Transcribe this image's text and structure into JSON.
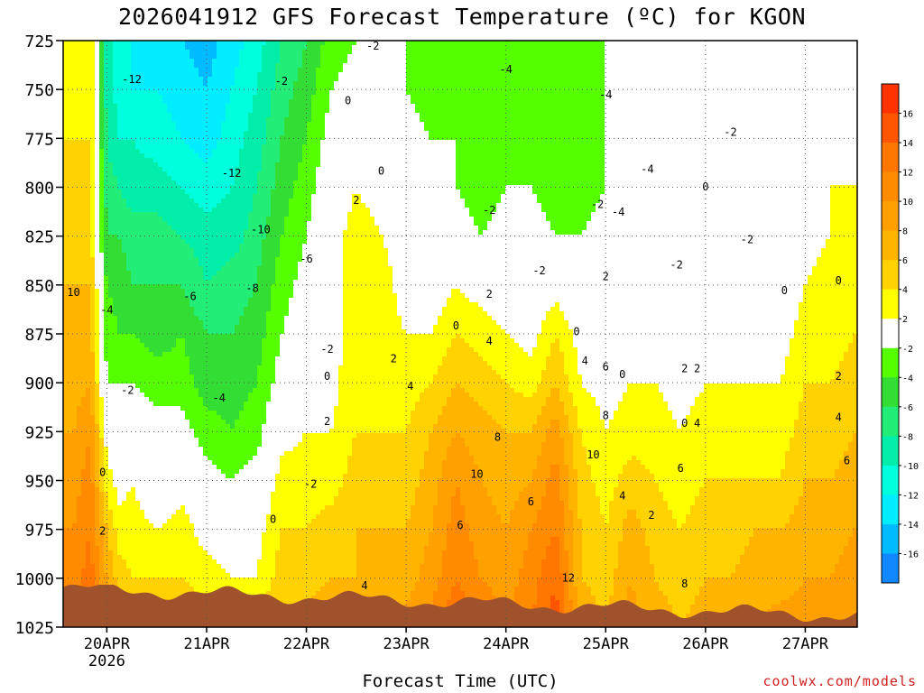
{
  "title": "2026041912 GFS Forecast Temperature (ºC) for KGON",
  "xlabel": "Forecast Time (UTC)",
  "credit": "coolwx.com/models",
  "chart_data": {
    "type": "heatmap",
    "title": "2026041912 GFS Forecast Temperature (ºC) for KGON",
    "xlabel": "Forecast Time (UTC)",
    "ylabel": "",
    "pressure_levels": [
      725,
      750,
      775,
      800,
      825,
      850,
      875,
      900,
      925,
      950,
      975,
      1000,
      1025
    ],
    "ylim": [
      1025,
      725
    ],
    "x_ticks": [
      "20APR",
      "21APR",
      "22APR",
      "23APR",
      "24APR",
      "25APR",
      "26APR",
      "27APR"
    ],
    "x_year": "2026",
    "x_range_hours": [
      -10.5,
      180.5
    ],
    "colorbar": {
      "labels": [
        "16",
        "14",
        "12",
        "10",
        "8",
        "6",
        "4",
        "2",
        "-2",
        "-4",
        "-6",
        "-8",
        "-10",
        "-12",
        "-14",
        "-16"
      ],
      "colors": [
        "#ff3300",
        "#ff5500",
        "#ff7700",
        "#ff8c00",
        "#ffa000",
        "#ffb400",
        "#ffd200",
        "#ffff00",
        "#ffffff",
        "#55ff00",
        "#33dd33",
        "#22ee77",
        "#00eeaa",
        "#00ffdd",
        "#00eeff",
        "#00bbff",
        "#1188ff"
      ]
    },
    "fields": [
      {
        "x": -8,
        "values": [
          4,
          3,
          4,
          4,
          5,
          6,
          6,
          7,
          8,
          9,
          10,
          11,
          12
        ]
      },
      {
        "x": -4,
        "values": [
          4,
          4,
          4,
          5,
          5,
          6,
          7,
          8,
          10,
          11,
          12,
          13,
          14
        ]
      },
      {
        "x": 0,
        "values": [
          -9,
          -9,
          -8,
          -7,
          -6,
          -4,
          -3,
          -2,
          1,
          3,
          6,
          8,
          10
        ]
      },
      {
        "x": 3,
        "values": [
          -11,
          -11,
          -10,
          -8,
          -6,
          -5,
          -4,
          -2,
          -1,
          1,
          3,
          5,
          8
        ]
      },
      {
        "x": 6,
        "values": [
          -12,
          -12,
          -10,
          -9,
          -7,
          -6,
          -4,
          -2,
          0,
          2,
          3,
          4,
          7
        ]
      },
      {
        "x": 12,
        "values": [
          -13,
          -12,
          -11,
          -9,
          -7,
          -6,
          -5,
          -3,
          -1,
          0,
          2,
          4,
          6
        ]
      },
      {
        "x": 18,
        "values": [
          -14,
          -13,
          -12,
          -10,
          -8,
          -6,
          -4,
          -3,
          -1,
          1,
          3,
          4,
          7
        ]
      },
      {
        "x": 24,
        "values": [
          -15,
          -14,
          -13,
          -11,
          -9,
          -8,
          -6,
          -5,
          -3,
          -1,
          1,
          3,
          5
        ]
      },
      {
        "x": 30,
        "values": [
          -13,
          -12,
          -11,
          -10,
          -9,
          -7,
          -6,
          -5,
          -4,
          -2,
          0,
          2,
          4
        ]
      },
      {
        "x": 36,
        "values": [
          -11,
          -10,
          -9,
          -8,
          -7,
          -6,
          -5,
          -4,
          -3,
          -1,
          1,
          2,
          4
        ]
      },
      {
        "x": 42,
        "values": [
          -8,
          -7,
          -6,
          -5,
          -4,
          -3,
          -2,
          -1,
          1,
          3,
          4,
          5,
          7
        ]
      },
      {
        "x": 48,
        "values": [
          -6,
          -5,
          -4,
          -3,
          -2,
          -1,
          0,
          1,
          2,
          3,
          4,
          5,
          7
        ]
      },
      {
        "x": 54,
        "values": [
          -3,
          -2,
          -1,
          0,
          1,
          1,
          1,
          1,
          2,
          3,
          5,
          6,
          8
        ]
      },
      {
        "x": 60,
        "values": [
          -2,
          -1,
          1,
          2,
          3,
          3,
          3,
          4,
          4,
          5,
          6,
          6,
          8
        ]
      },
      {
        "x": 66,
        "values": [
          -2,
          -1,
          0,
          1,
          2,
          3,
          3,
          3,
          4,
          5,
          6,
          6,
          8
        ]
      },
      {
        "x": 72,
        "values": [
          -2,
          -2,
          -1,
          0,
          1,
          1,
          2,
          3,
          4,
          5,
          6,
          7,
          9
        ]
      },
      {
        "x": 78,
        "values": [
          -3,
          -3,
          -2,
          -2,
          -1,
          0,
          2,
          4,
          6,
          7,
          8,
          9,
          11
        ]
      },
      {
        "x": 84,
        "values": [
          -3,
          -3,
          -2,
          -2,
          -1,
          2,
          4,
          6,
          8,
          10,
          11,
          12,
          14
        ]
      },
      {
        "x": 90,
        "values": [
          -4,
          -4,
          -3,
          -3,
          -2,
          1,
          3,
          5,
          7,
          8,
          9,
          10,
          12
        ]
      },
      {
        "x": 96,
        "values": [
          -4,
          -3,
          -3,
          -2,
          -1,
          0,
          2,
          4,
          6,
          7,
          8,
          9,
          10
        ]
      },
      {
        "x": 102,
        "values": [
          -4,
          -4,
          -3,
          -2,
          -1,
          0,
          1,
          3,
          6,
          8,
          10,
          11,
          12
        ]
      },
      {
        "x": 108,
        "values": [
          -4,
          -4,
          -3,
          -3,
          -2,
          1,
          4,
          6,
          9,
          11,
          12,
          14,
          15
        ]
      },
      {
        "x": 114,
        "values": [
          -4,
          -4,
          -3,
          -3,
          -2,
          -1,
          1,
          2,
          4,
          5,
          6,
          6,
          8
        ]
      },
      {
        "x": 120,
        "values": [
          -2,
          -2,
          -2,
          -2,
          -1,
          -1,
          0,
          1,
          2,
          3,
          4,
          5,
          6
        ]
      },
      {
        "x": 126,
        "values": [
          -2,
          -1,
          -1,
          -1,
          -1,
          0,
          1,
          2,
          3,
          5,
          7,
          8,
          9
        ]
      },
      {
        "x": 132,
        "values": [
          -1,
          -1,
          0,
          0,
          0,
          0,
          1,
          2,
          3,
          4,
          5,
          6,
          7
        ]
      },
      {
        "x": 138,
        "values": [
          -1,
          -1,
          -1,
          -2,
          -2,
          -1,
          0,
          1,
          2,
          3,
          4,
          5,
          6
        ]
      },
      {
        "x": 144,
        "values": [
          -2,
          -2,
          -2,
          -2,
          -2,
          0,
          1,
          2,
          3,
          4,
          5,
          6,
          7
        ]
      },
      {
        "x": 150,
        "values": [
          -2,
          -2,
          -2,
          -2,
          -1,
          0,
          1,
          2,
          3,
          4,
          5,
          6,
          7
        ]
      },
      {
        "x": 156,
        "values": [
          -1,
          -1,
          -1,
          -1,
          0,
          0,
          1,
          2,
          3,
          4,
          6,
          7,
          8
        ]
      },
      {
        "x": 162,
        "values": [
          -1,
          0,
          0,
          0,
          0,
          0,
          1,
          2,
          3,
          4,
          6,
          7,
          9
        ]
      },
      {
        "x": 168,
        "values": [
          0,
          0,
          1,
          1,
          1,
          2,
          3,
          4,
          5,
          6,
          7,
          8,
          9
        ]
      },
      {
        "x": 174,
        "values": [
          0,
          1,
          1,
          2,
          2,
          3,
          3,
          4,
          5,
          6,
          7,
          8,
          10
        ]
      },
      {
        "x": 180,
        "values": [
          0,
          1,
          1,
          2,
          3,
          4,
          4,
          5,
          6,
          7,
          8,
          9,
          10
        ]
      }
    ],
    "contour_labels": [
      {
        "x": 6,
        "p": 745,
        "text": "-12"
      },
      {
        "x": 30,
        "p": 793,
        "text": "-12"
      },
      {
        "x": 42,
        "p": 746,
        "text": "-2"
      },
      {
        "x": 64,
        "p": 728,
        "text": "-2"
      },
      {
        "x": 58,
        "p": 756,
        "text": "0"
      },
      {
        "x": 66,
        "p": 792,
        "text": "0"
      },
      {
        "x": 96,
        "p": 740,
        "text": "-4"
      },
      {
        "x": 120,
        "p": 753,
        "text": "-4"
      },
      {
        "x": 130,
        "p": 791,
        "text": "-4"
      },
      {
        "x": 150,
        "p": 772,
        "text": "-2"
      },
      {
        "x": 144,
        "p": 800,
        "text": "0"
      },
      {
        "x": 118,
        "p": 809,
        "text": "-2"
      },
      {
        "x": 123,
        "p": 813,
        "text": "-4"
      },
      {
        "x": 92,
        "p": 812,
        "text": "-2"
      },
      {
        "x": 154,
        "p": 827,
        "text": "-2"
      },
      {
        "x": 104,
        "p": 843,
        "text": "-2"
      },
      {
        "x": 137,
        "p": 840,
        "text": "-2"
      },
      {
        "x": 163,
        "p": 853,
        "text": "0"
      },
      {
        "x": 37,
        "p": 822,
        "text": "-10"
      },
      {
        "x": 48,
        "p": 837,
        "text": "-6"
      },
      {
        "x": 35,
        "p": 852,
        "text": "-8"
      },
      {
        "x": 20,
        "p": 856,
        "text": "-6"
      },
      {
        "x": -8,
        "p": 854,
        "text": "10"
      },
      {
        "x": 0,
        "p": 863,
        "text": "-4"
      },
      {
        "x": 5,
        "p": 904,
        "text": "-2"
      },
      {
        "x": 27,
        "p": 908,
        "text": "-4"
      },
      {
        "x": 60,
        "p": 807,
        "text": "2"
      },
      {
        "x": 53,
        "p": 883,
        "text": "-2"
      },
      {
        "x": 53,
        "p": 897,
        "text": "0"
      },
      {
        "x": 53,
        "p": 920,
        "text": "2"
      },
      {
        "x": 69,
        "p": 888,
        "text": "2"
      },
      {
        "x": 73,
        "p": 902,
        "text": "4"
      },
      {
        "x": 84,
        "p": 871,
        "text": "0"
      },
      {
        "x": 92,
        "p": 855,
        "text": "2"
      },
      {
        "x": 92,
        "p": 879,
        "text": "4"
      },
      {
        "x": 113,
        "p": 874,
        "text": "0"
      },
      {
        "x": 120,
        "p": 846,
        "text": "2"
      },
      {
        "x": 115,
        "p": 889,
        "text": "4"
      },
      {
        "x": 120,
        "p": 892,
        "text": "6"
      },
      {
        "x": 124,
        "p": 896,
        "text": "0"
      },
      {
        "x": 139,
        "p": 893,
        "text": "2"
      },
      {
        "x": 142,
        "p": 893,
        "text": "2"
      },
      {
        "x": 176,
        "p": 848,
        "text": "0"
      },
      {
        "x": 176,
        "p": 897,
        "text": "2"
      },
      {
        "x": 176,
        "p": 918,
        "text": "4"
      },
      {
        "x": 178,
        "p": 940,
        "text": "6"
      },
      {
        "x": 139,
        "p": 921,
        "text": "0"
      },
      {
        "x": 142,
        "p": 921,
        "text": "4"
      },
      {
        "x": 138,
        "p": 944,
        "text": "6"
      },
      {
        "x": 94,
        "p": 928,
        "text": "8"
      },
      {
        "x": 89,
        "p": 947,
        "text": "10"
      },
      {
        "x": 102,
        "p": 961,
        "text": "6"
      },
      {
        "x": 85,
        "p": 973,
        "text": "6"
      },
      {
        "x": 120,
        "p": 917,
        "text": "8"
      },
      {
        "x": 117,
        "p": 937,
        "text": "10"
      },
      {
        "x": 124,
        "p": 958,
        "text": "4"
      },
      {
        "x": 131,
        "p": 968,
        "text": "2"
      },
      {
        "x": 111,
        "p": 1000,
        "text": "12"
      },
      {
        "x": 139,
        "p": 1003,
        "text": "8"
      },
      {
        "x": -1,
        "p": 946,
        "text": "0"
      },
      {
        "x": -1,
        "p": 976,
        "text": "2"
      },
      {
        "x": 40,
        "p": 970,
        "text": "0"
      },
      {
        "x": 49,
        "p": 952,
        "text": "-2"
      },
      {
        "x": 62,
        "p": 1004,
        "text": "4"
      }
    ]
  }
}
